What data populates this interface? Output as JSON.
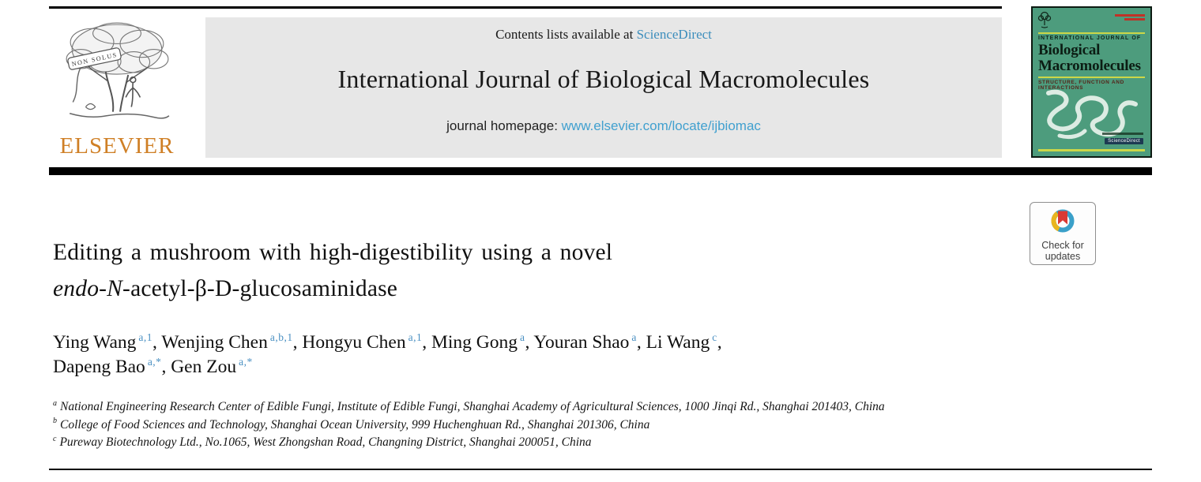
{
  "header": {
    "contents_prefix": "Contents lists available at ",
    "contents_link": "ScienceDirect",
    "journal_title": "International Journal of Biological Macromolecules",
    "homepage_prefix": "journal homepage: ",
    "homepage_link": "www.elsevier.com/locate/ijbiomac"
  },
  "branding": {
    "elsevier_wordmark": "ELSEVIER",
    "elsevier_banner": "NON SOLUS"
  },
  "cover": {
    "kicker": "INTERNATIONAL JOURNAL OF",
    "title_line1": "Biological",
    "title_line2": "Macromolecules",
    "subtitle": "STRUCTURE, FUNCTION AND INTERACTIONS",
    "badge": "ScienceDirect"
  },
  "check_badge": {
    "line1": "Check for",
    "line2": "updates"
  },
  "article": {
    "title_line1": "Editing a mushroom with high-digestibility using a novel",
    "title_line2_italic": "endo-N",
    "title_line2_rest": "-acetyl-β-D-glucosaminidase",
    "authors": [
      {
        "name": "Ying Wang",
        "sup": "a,1"
      },
      {
        "name": "Wenjing Chen",
        "sup": "a,b,1"
      },
      {
        "name": "Hongyu Chen",
        "sup": "a,1"
      },
      {
        "name": "Ming Gong",
        "sup": "a"
      },
      {
        "name": "Youran Shao",
        "sup": "a"
      },
      {
        "name": "Li Wang",
        "sup": "c",
        "break_after": true
      },
      {
        "name": "Dapeng Bao",
        "sup": "a,*"
      },
      {
        "name": "Gen Zou",
        "sup": "a,*"
      }
    ],
    "affiliations": [
      {
        "sup": "a",
        "text": "National Engineering Research Center of Edible Fungi, Institute of Edible Fungi, Shanghai Academy of Agricultural Sciences, 1000 Jinqi Rd., Shanghai 201403, China"
      },
      {
        "sup": "b",
        "text": "College of Food Sciences and Technology, Shanghai Ocean University, 999 Huchenghuan Rd., Shanghai 201306, China"
      },
      {
        "sup": "c",
        "text": "Pureway Biotechnology Ltd., No.1065, West Zhongshan Road, Changning District, Shanghai 200051, China"
      }
    ]
  },
  "colors": {
    "link_blue": "#3c8dbc",
    "homepage_blue": "#41a0cf",
    "sup_blue": "#4a90c2",
    "elsevier_orange": "#cf7f25",
    "cover_green": "#4d9c7d",
    "cover_accent": "#ccd748",
    "badge_ring_teal": "#3aa0c9",
    "badge_ring_yellow": "#e9b51f",
    "badge_bookmark_red": "#d93a34"
  }
}
